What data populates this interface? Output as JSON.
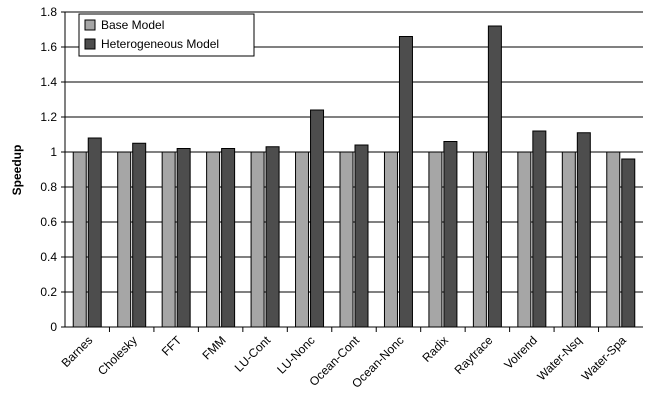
{
  "chart_data": {
    "type": "bar",
    "title": "",
    "xlabel": "",
    "ylabel": "Speedup",
    "ylim": [
      0,
      1.8
    ],
    "yticks": [
      0,
      0.2,
      0.4,
      0.6,
      0.8,
      1,
      1.2,
      1.4,
      1.6,
      1.8
    ],
    "ytick_labels": [
      "0",
      "0.2",
      "0.4",
      "0.6",
      "0.8",
      "1",
      "1.2",
      "1.4",
      "1.6",
      "1.8"
    ],
    "grid": true,
    "legend_position": "top-left",
    "categories": [
      "Barnes",
      "Cholesky",
      "FFT",
      "FMM",
      "LU-Cont",
      "LU-Nonc",
      "Ocean-Cont",
      "Ocean-Nonc",
      "Radix",
      "Raytrace",
      "Volrend",
      "Water-Nsq",
      "Water-Spa"
    ],
    "series": [
      {
        "name": "Base Model",
        "color": "#a6a6a6",
        "values": [
          1,
          1,
          1,
          1,
          1,
          1,
          1,
          1,
          1,
          1,
          1,
          1,
          1
        ]
      },
      {
        "name": "Heterogeneous Model",
        "color": "#4d4d4d",
        "values": [
          1.08,
          1.05,
          1.02,
          1.02,
          1.03,
          1.24,
          1.04,
          1.66,
          1.06,
          1.72,
          1.12,
          1.11,
          0.96
        ]
      }
    ]
  }
}
